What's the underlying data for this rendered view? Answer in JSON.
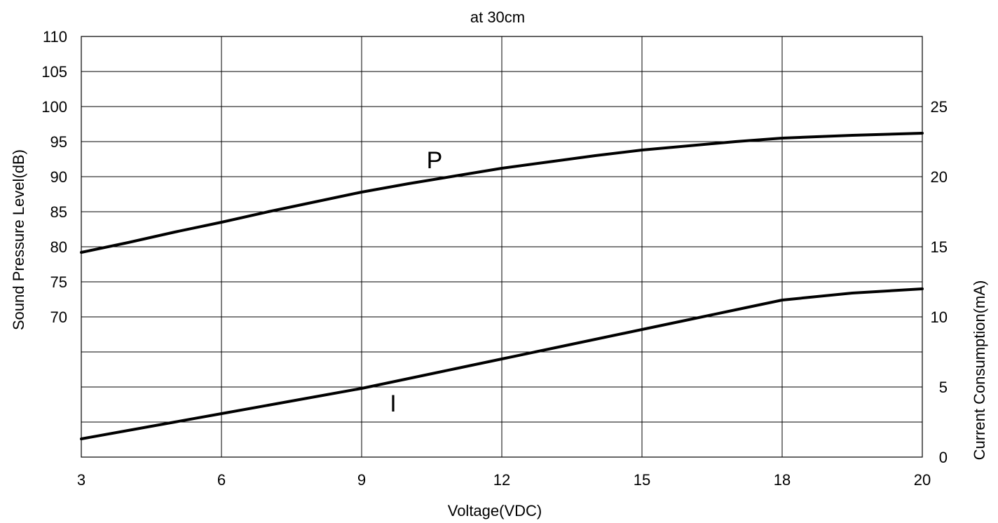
{
  "chart_data": {
    "type": "line",
    "title": "at 30cm",
    "xlabel": "Voltage(VDC)",
    "ylabel_left": "Sound Pressure Level(dB)",
    "ylabel_right": "Current Consumption(mA)",
    "x_ticks": [
      3,
      6,
      9,
      12,
      15,
      18,
      20
    ],
    "x_range": [
      3,
      20
    ],
    "y_left_range": [
      50,
      110
    ],
    "y_left_ticks": [
      70,
      75,
      80,
      85,
      90,
      95,
      100,
      105,
      110
    ],
    "y_right_range": [
      0,
      30
    ],
    "y_right_ticks": [
      0,
      5,
      10,
      15,
      20,
      25
    ],
    "grid": true,
    "series": [
      {
        "name": "P",
        "axis": "left",
        "x": [
          3,
          4,
          5,
          6,
          7,
          8,
          9,
          10,
          11,
          12,
          13,
          14,
          15,
          16,
          17,
          18,
          19,
          20
        ],
        "values": [
          79.2,
          80.6,
          82.1,
          83.5,
          85.0,
          86.4,
          87.8,
          89.0,
          90.1,
          91.2,
          92.1,
          93.0,
          93.8,
          94.4,
          95.0,
          95.5,
          95.9,
          96.2
        ]
      },
      {
        "name": "I",
        "axis": "right",
        "x": [
          3,
          4,
          5,
          6,
          7,
          8,
          9,
          10,
          11,
          12,
          13,
          14,
          15,
          16,
          17,
          18,
          19,
          20
        ],
        "values": [
          1.3,
          1.9,
          2.5,
          3.1,
          3.7,
          4.3,
          4.9,
          5.6,
          6.3,
          7.0,
          7.7,
          8.4,
          9.1,
          9.8,
          10.5,
          11.2,
          11.7,
          12.0
        ]
      }
    ]
  }
}
